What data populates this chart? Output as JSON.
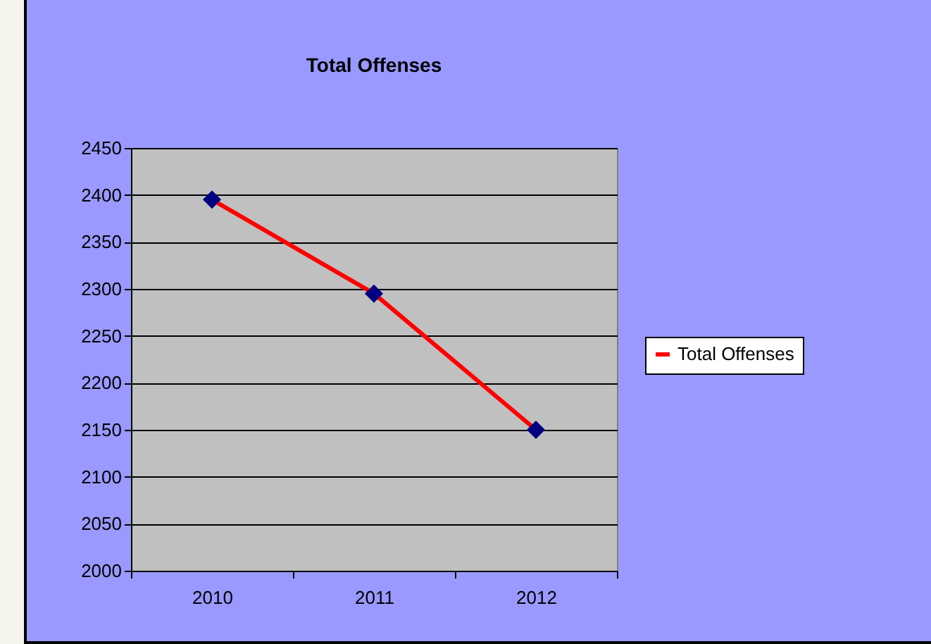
{
  "chart_data": {
    "type": "line",
    "title": "Total Offenses",
    "categories": [
      "2010",
      "2011",
      "2012"
    ],
    "series": [
      {
        "name": "Total Offenses",
        "color": "#ff0000",
        "values": [
          2395,
          2295,
          2150
        ]
      }
    ],
    "ylim": [
      2000,
      2450
    ],
    "yticks": [
      2000,
      2050,
      2100,
      2150,
      2200,
      2250,
      2300,
      2350,
      2400,
      2450
    ],
    "grid": "y",
    "legend": "right",
    "marker": "diamond"
  }
}
